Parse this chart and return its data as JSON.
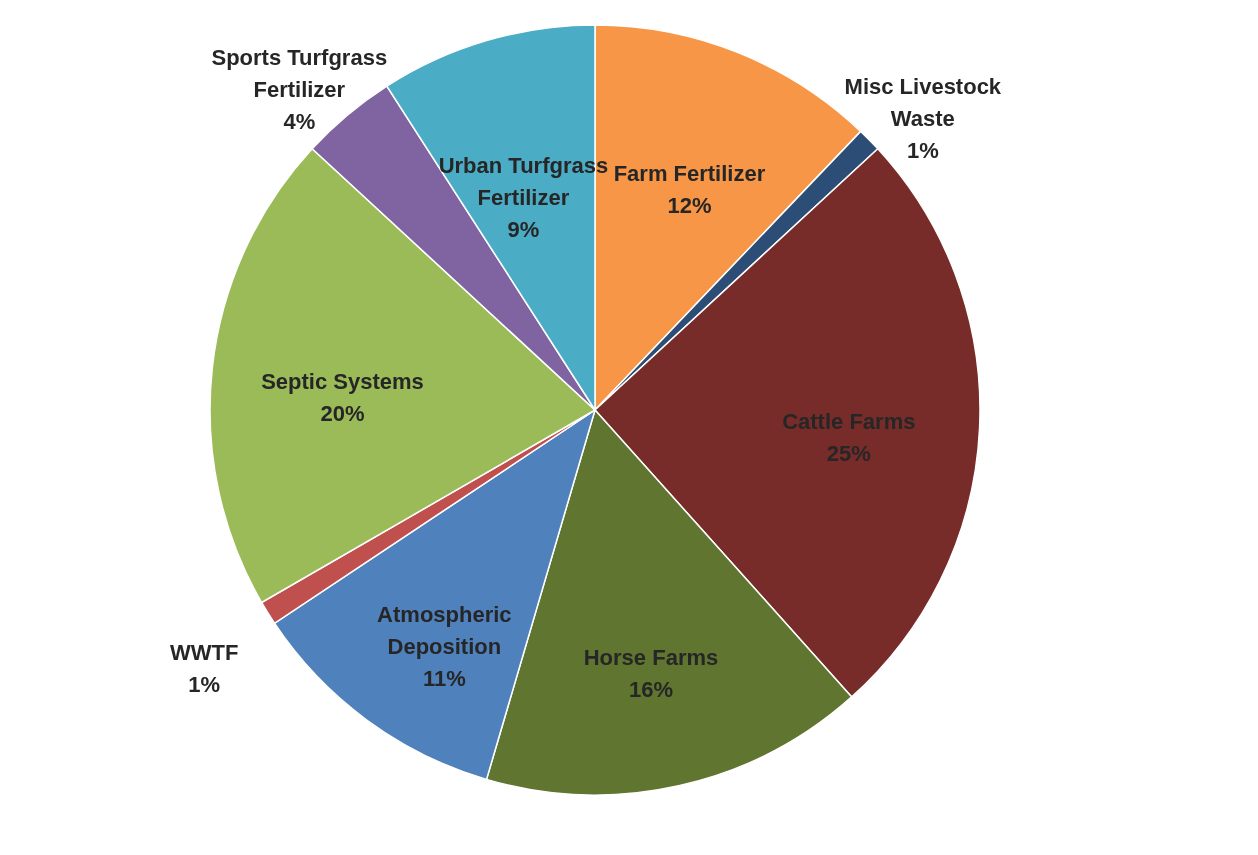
{
  "chart_data": {
    "type": "pie",
    "categories": [
      "Farm Fertilizer",
      "Misc Livestock Waste",
      "Cattle Farms",
      "Horse Farms",
      "Atmospheric Deposition",
      "WWTF",
      "Septic Systems",
      "Sports Turfgrass Fertilizer",
      "Urban Turfgrass Fertilizer"
    ],
    "values": [
      12,
      1,
      25,
      16,
      11,
      1,
      20,
      4,
      9
    ],
    "value_labels": [
      "12%",
      "1%",
      "25%",
      "16%",
      "11%",
      "1%",
      "20%",
      "4%",
      "9%"
    ],
    "colors": [
      "#f79646",
      "#2c4d75",
      "#772c2a",
      "#5f7530",
      "#4f81bd",
      "#c0504d",
      "#9bbb59",
      "#8064a2",
      "#4bacc6"
    ],
    "legend": false
  }
}
